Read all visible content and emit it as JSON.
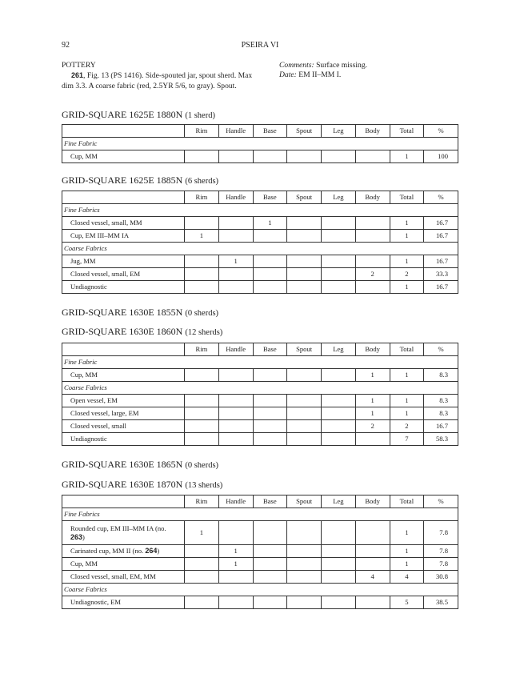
{
  "page_number": "92",
  "running_head": "PSEIRA VI",
  "intro": {
    "section_title": "POTTERY",
    "entry_number": "261",
    "entry_text": ", Fig. 13 (PS 1416). Side-spouted jar, spout sherd. Max dim 3.3. A coarse fabric (red, 2.5YR 5/6, to gray). Spout.",
    "comments_label": "Comments:",
    "comments_text": " Surface missing.",
    "date_label": "Date:",
    "date_text": " EM II–MM I."
  },
  "columns": [
    "",
    "Rim",
    "Handle",
    "Base",
    "Spout",
    "Leg",
    "Body",
    "Total",
    "%"
  ],
  "grid_squares": [
    {
      "title": "GRID-SQUARE 1625E 1880N",
      "count": "(1 sherd)",
      "rows": [
        {
          "section": "Fine Fabric"
        },
        {
          "label": "Cup, MM",
          "cells": [
            "",
            "",
            "",
            "",
            "",
            "",
            "1",
            "100"
          ]
        }
      ]
    },
    {
      "title": "GRID-SQUARE 1625E 1885N",
      "count": "(6 sherds)",
      "rows": [
        {
          "section": "Fine Fabrics"
        },
        {
          "label": "Closed vessel, small, MM",
          "cells": [
            "",
            "",
            "1",
            "",
            "",
            "",
            "1",
            "16.7"
          ]
        },
        {
          "label": "Cup, EM III–MM IA",
          "cells": [
            "1",
            "",
            "",
            "",
            "",
            "",
            "1",
            "16.7"
          ]
        },
        {
          "section": "Coarse Fabrics"
        },
        {
          "label": "Jug, MM",
          "cells": [
            "",
            "1",
            "",
            "",
            "",
            "",
            "1",
            "16.7"
          ]
        },
        {
          "label": "Closed vessel, small, EM",
          "cells": [
            "",
            "",
            "",
            "",
            "",
            "2",
            "2",
            "33.3"
          ]
        },
        {
          "label": "Undiagnostic",
          "cells": [
            "",
            "",
            "",
            "",
            "",
            "",
            "1",
            "16.7"
          ]
        }
      ]
    },
    {
      "title": "GRID-SQUARE 1630E 1855N",
      "count": "(0 sherds)",
      "rows": []
    },
    {
      "title": "GRID-SQUARE 1630E 1860N",
      "count": "(12 sherds)",
      "rows": [
        {
          "section": "Fine Fabric"
        },
        {
          "label": "Cup, MM",
          "cells": [
            "",
            "",
            "",
            "",
            "",
            "1",
            "1",
            "8.3"
          ]
        },
        {
          "section": "Coarse Fabrics"
        },
        {
          "label": "Open vessel, EM",
          "cells": [
            "",
            "",
            "",
            "",
            "",
            "1",
            "1",
            "8.3"
          ]
        },
        {
          "label": "Closed vessel, large, EM",
          "cells": [
            "",
            "",
            "",
            "",
            "",
            "1",
            "1",
            "8.3"
          ]
        },
        {
          "label": "Closed vessel, small",
          "cells": [
            "",
            "",
            "",
            "",
            "",
            "2",
            "2",
            "16.7"
          ]
        },
        {
          "label": "Undiagnostic",
          "cells": [
            "",
            "",
            "",
            "",
            "",
            "",
            "7",
            "58.3"
          ]
        }
      ]
    },
    {
      "title": "GRID-SQUARE 1630E 1865N",
      "count": "(0 sherds)",
      "rows": []
    },
    {
      "title": "GRID-SQUARE 1630E 1870N",
      "count": "(13 sherds)",
      "rows": [
        {
          "section": "Fine Fabrics"
        },
        {
          "label": "Rounded cup, EM III–MM IA (no. ",
          "ref": "263",
          "suffix": ")",
          "cells": [
            "1",
            "",
            "",
            "",
            "",
            "",
            "1",
            "7.8"
          ]
        },
        {
          "label": "Carinated cup, MM II (no. ",
          "ref": "264",
          "suffix": ")",
          "cells": [
            "",
            "1",
            "",
            "",
            "",
            "",
            "1",
            "7.8"
          ]
        },
        {
          "label": "Cup, MM",
          "cells": [
            "",
            "1",
            "",
            "",
            "",
            "",
            "1",
            "7.8"
          ]
        },
        {
          "label": "Closed vessel, small, EM, MM",
          "cells": [
            "",
            "",
            "",
            "",
            "",
            "4",
            "4",
            "30.8"
          ]
        },
        {
          "section": "Coarse Fabrics"
        },
        {
          "label": "Undiagnostic, EM",
          "cells": [
            "",
            "",
            "",
            "",
            "",
            "",
            "5",
            "38.5"
          ]
        }
      ]
    }
  ]
}
